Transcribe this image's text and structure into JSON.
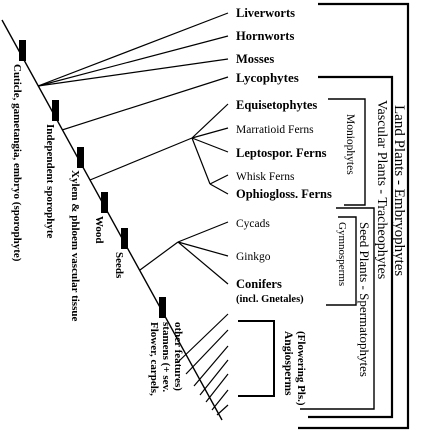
{
  "taxa": {
    "liverworts": "Liverworts",
    "hornworts": "Hornworts",
    "mosses": "Mosses",
    "lycophytes": "Lycophytes",
    "equisetophytes": "Equisetophytes",
    "marratioid": "Marratioid Ferns",
    "leptospor": "Leptospor. Ferns",
    "whisk": "Whisk Ferns",
    "ophiogloss": "Ophiogloss. Ferns",
    "cycads": "Cycads",
    "ginkgo": "Ginkgo",
    "conifers": "Conifers",
    "conifers_note": "(incl. Gnetales)"
  },
  "characters": {
    "c1": "Cuticle, gametangia, embryo (sporophyte)",
    "c2": "Independent sporophyte",
    "c3": "Xylem & phloem vascular tissue",
    "c4": "Wood",
    "c5": "Seeds",
    "c6_l1": "Flower, carpels,",
    "c6_l2": "stamens (+ sev.",
    "c6_l3": "other features)"
  },
  "groups": {
    "monilophytes": "Moniophytes",
    "gymnosperms": "Gymnosperms",
    "angio_l1": "Angiosperms",
    "angio_l2": "(Flowering Pls.)",
    "seed_plants": "Seed Plants - Spermatophytes",
    "vascular": "Vascular Plants - Tracheophytes",
    "land": "Land Plants - Embryophytes"
  }
}
